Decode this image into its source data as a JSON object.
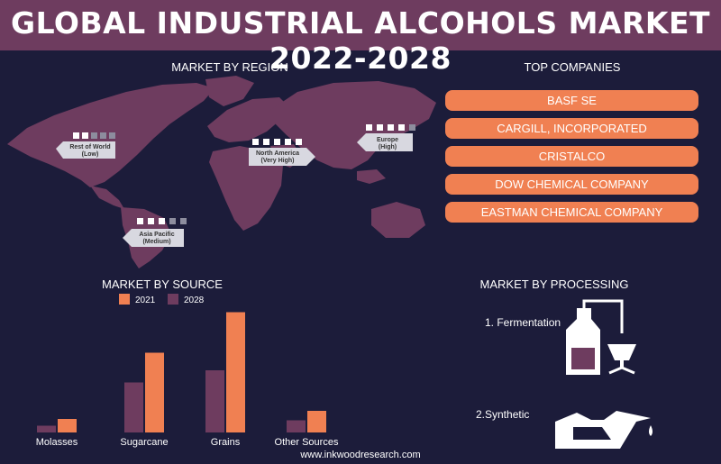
{
  "title": "GLOBAL INDUSTRIAL ALCOHOLS MARKET 2022-2028",
  "region_section": {
    "heading": "MARKET BY REGION",
    "regions": [
      {
        "name": "Rest of World",
        "level": "(Low)",
        "rating": 2
      },
      {
        "name": "North America",
        "level": "(Very High)",
        "rating": 5
      },
      {
        "name": "Europe",
        "level": "(High)",
        "rating": 4
      },
      {
        "name": "Asia Pacific",
        "level": "(Medium)",
        "rating": 3
      }
    ]
  },
  "companies_section": {
    "heading": "TOP COMPANIES",
    "items": [
      "BASF SE",
      "CARGILL, INCORPORATED",
      "CRISTALCO",
      "DOW CHEMICAL COMPANY",
      "EASTMAN CHEMICAL COMPANY"
    ]
  },
  "processing_section": {
    "heading": "MARKET BY PROCESSING",
    "items": [
      "1. Fermentation",
      "2.Synthetic"
    ]
  },
  "chart_data": {
    "type": "bar",
    "title": "MARKET BY SOURCE",
    "categories": [
      "Molasses",
      "Sugarcane",
      "Grains",
      "Other Sources"
    ],
    "series": [
      {
        "name": "2021",
        "values": [
          10,
          59,
          89,
          16
        ]
      },
      {
        "name": "2028",
        "values": [
          5,
          37,
          46,
          9
        ]
      }
    ],
    "ylim": [
      0,
      100
    ],
    "grid": false,
    "legend": "top"
  },
  "colors": {
    "background": "#1c1c3a",
    "title_bar": "#6e3c5f",
    "accent": "#f08052",
    "map": "#6e3c5f",
    "bar_2028": "#6e3c5f"
  },
  "footer": "www.inkwoodresearch.com"
}
